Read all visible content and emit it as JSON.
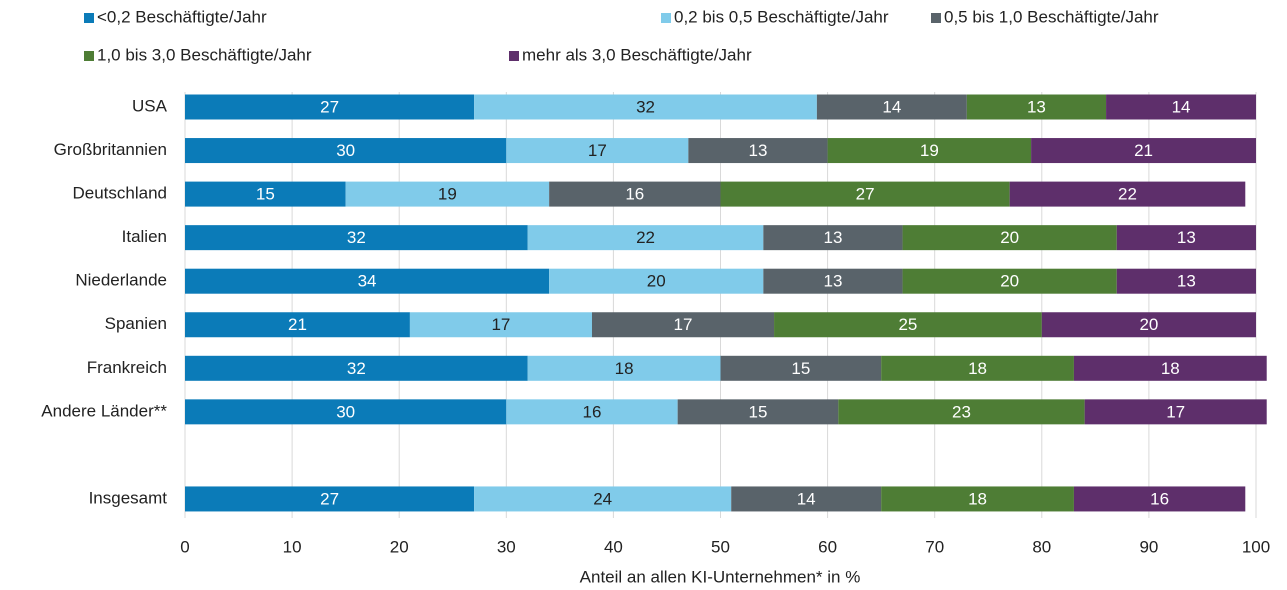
{
  "chart_data": {
    "type": "bar",
    "orientation": "horizontal",
    "stacked": true,
    "x_label": "Anteil an allen KI-Unternehmen* in %",
    "categories": [
      "USA",
      "Großbritannien",
      "Deutschland",
      "Italien",
      "Niederlande",
      "Spanien",
      "Frankreich",
      "Andere Länder**",
      null,
      "Insgesamt"
    ],
    "series": [
      {
        "name": "<0,2 Beschäftigte/Jahr",
        "color": "#0b7bb8",
        "values": [
          27,
          30,
          15,
          32,
          34,
          21,
          32,
          30,
          null,
          27
        ]
      },
      {
        "name": "0,2 bis 0,5 Beschäftigte/Jahr",
        "color": "#80cbea",
        "values": [
          32,
          17,
          19,
          22,
          20,
          17,
          18,
          16,
          null,
          24
        ]
      },
      {
        "name": "0,5 bis 1,0 Beschäftigte/Jahr",
        "color": "#59636a",
        "values": [
          14,
          13,
          16,
          13,
          13,
          17,
          15,
          15,
          null,
          14
        ]
      },
      {
        "name": "1,0 bis 3,0 Beschäftigte/Jahr",
        "color": "#4e7d35",
        "values": [
          13,
          19,
          27,
          20,
          20,
          25,
          18,
          23,
          null,
          18
        ]
      },
      {
        "name": "mehr als 3,0 Beschäftigte/Jahr",
        "color": "#5e2f6b",
        "values": [
          14,
          21,
          22,
          13,
          13,
          20,
          18,
          17,
          null,
          16
        ]
      }
    ],
    "xlim": [
      0,
      100
    ],
    "xticks": [
      0,
      10,
      20,
      30,
      40,
      50,
      60,
      70,
      80,
      90,
      100
    ],
    "grid": true
  }
}
